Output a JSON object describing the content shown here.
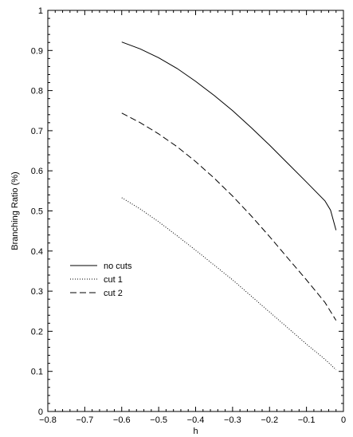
{
  "chart_data": {
    "type": "line",
    "title": "",
    "xlabel": "h",
    "ylabel": "Branching Ratio (%)",
    "xlim": [
      -0.8,
      0
    ],
    "ylim": [
      0,
      1
    ],
    "xticks": [
      -0.8,
      -0.7,
      -0.6,
      -0.5,
      -0.4,
      -0.3,
      -0.2,
      -0.1,
      0
    ],
    "xtick_labels": [
      "−0.8",
      "−0.7",
      "−0.6",
      "−0.5",
      "−0.4",
      "−0.3",
      "−0.2",
      "−0.1",
      "0"
    ],
    "yticks": [
      0,
      0.1,
      0.2,
      0.3,
      0.4,
      0.5,
      0.6,
      0.7,
      0.8,
      0.9,
      1
    ],
    "ytick_labels": [
      "0",
      "0.1",
      "0.2",
      "0.3",
      "0.4",
      "0.5",
      "0.6",
      "0.7",
      "0.8",
      "0.9",
      "1"
    ],
    "grid": false,
    "legend_position": "middle-left",
    "series": [
      {
        "name": "no cuts",
        "style": "solid",
        "color": "#000000",
        "x": [
          -0.6,
          -0.55,
          -0.5,
          -0.45,
          -0.4,
          -0.35,
          -0.3,
          -0.25,
          -0.2,
          -0.15,
          -0.1,
          -0.05,
          -0.035,
          -0.02
        ],
        "y": [
          0.921,
          0.904,
          0.882,
          0.855,
          0.823,
          0.788,
          0.75,
          0.708,
          0.664,
          0.618,
          0.572,
          0.525,
          0.502,
          0.452
        ]
      },
      {
        "name": "cut 1",
        "style": "dotted",
        "color": "#000000",
        "x": [
          -0.6,
          -0.55,
          -0.5,
          -0.45,
          -0.4,
          -0.35,
          -0.3,
          -0.25,
          -0.2,
          -0.15,
          -0.1,
          -0.05,
          -0.02
        ],
        "y": [
          0.533,
          0.505,
          0.473,
          0.438,
          0.402,
          0.365,
          0.328,
          0.288,
          0.248,
          0.208,
          0.168,
          0.13,
          0.104
        ]
      },
      {
        "name": "cut 2",
        "style": "dashed",
        "color": "#000000",
        "x": [
          -0.6,
          -0.55,
          -0.5,
          -0.45,
          -0.4,
          -0.35,
          -0.3,
          -0.25,
          -0.2,
          -0.15,
          -0.1,
          -0.05,
          -0.02
        ],
        "y": [
          0.744,
          0.72,
          0.692,
          0.66,
          0.623,
          0.582,
          0.537,
          0.488,
          0.436,
          0.382,
          0.328,
          0.272,
          0.227
        ]
      }
    ]
  }
}
